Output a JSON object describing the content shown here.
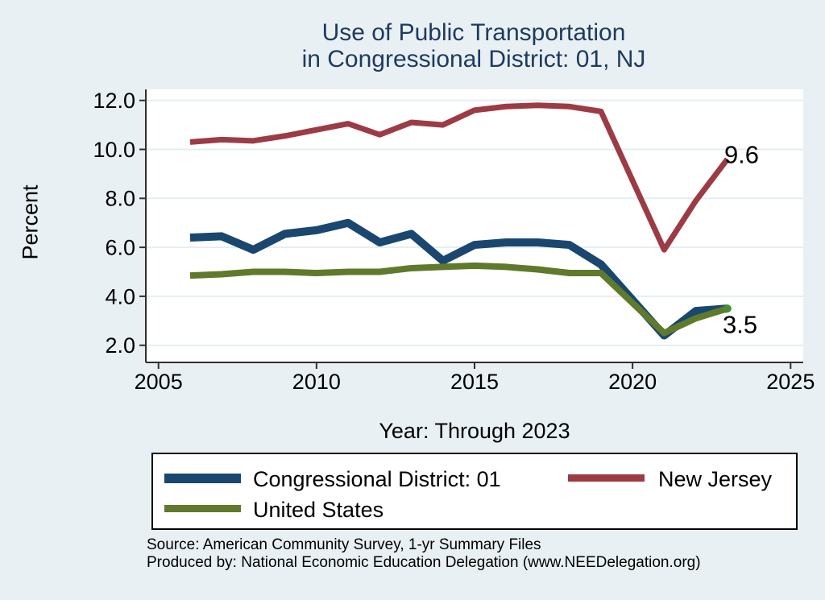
{
  "figure": {
    "title_line1": "Use of Public Transportation",
    "title_line2": "in Congressional District: 01, NJ"
  },
  "axes": {
    "y_label": "Percent",
    "x_label": "Year: Through 2023"
  },
  "legend": {
    "items": [
      {
        "label": "Congressional District: 01",
        "color": "#1a476f"
      },
      {
        "label": "New Jersey",
        "color": "#9d3b44"
      },
      {
        "label": "United States",
        "color": "#5f7a2b"
      }
    ]
  },
  "source": {
    "line1": "Source: American Community Survey, 1-yr Summary Files",
    "line2": "Produced by: National Economic Education Delegation (www.NEEDelegation.org)"
  },
  "colors": {
    "background": "#e8f0f3",
    "plot_background": "#ffffff",
    "grid": "#e4edf3",
    "axis": "#2f2f2f",
    "title": "#1e3a5e",
    "navy": "#1a476f",
    "maroon": "#9d3b44",
    "olive": "#5f7a2b",
    "end_marker_green": "#4a8c2f"
  },
  "chart_data": {
    "type": "line",
    "title": "Use of Public Transportation in Congressional District: 01, NJ",
    "xlabel": "Year: Through 2023",
    "ylabel": "Percent",
    "grid": true,
    "legend_position": "bottom",
    "xlim": [
      2004.6,
      2025.4
    ],
    "ylim": [
      1.3,
      12.45
    ],
    "x_ticks": [
      {
        "value": 2005,
        "label": "2005"
      },
      {
        "value": 2010,
        "label": "2010"
      },
      {
        "value": 2015,
        "label": "2015"
      },
      {
        "value": 2020,
        "label": "2020"
      },
      {
        "value": 2025,
        "label": "2025"
      }
    ],
    "y_ticks": [
      {
        "value": 12,
        "label": "12.0"
      },
      {
        "value": 10,
        "label": "10.0"
      },
      {
        "value": 8,
        "label": "8.0"
      },
      {
        "value": 6,
        "label": "6.0"
      },
      {
        "value": 4,
        "label": "4.0"
      },
      {
        "value": 2,
        "label": "2.0"
      }
    ],
    "x": [
      2006,
      2007,
      2008,
      2009,
      2010,
      2011,
      2012,
      2013,
      2014,
      2015,
      2016,
      2017,
      2018,
      2019,
      2020,
      2021,
      2022,
      2023
    ],
    "series": [
      {
        "name": "Congressional District: 01",
        "color": "#1a476f",
        "width": 10,
        "values": [
          6.4,
          6.45,
          5.9,
          6.55,
          6.7,
          7.0,
          6.2,
          6.55,
          5.45,
          6.1,
          6.2,
          6.2,
          6.1,
          5.3,
          null,
          2.4,
          3.4,
          3.5
        ]
      },
      {
        "name": "United States",
        "color": "#5f7a2b",
        "width": 8,
        "values": [
          4.85,
          4.9,
          5.0,
          5.0,
          4.95,
          5.0,
          5.0,
          5.15,
          5.2,
          5.25,
          5.2,
          5.1,
          4.95,
          4.95,
          null,
          2.5,
          3.1,
          3.5
        ]
      },
      {
        "name": "New Jersey",
        "color": "#9d3b44",
        "width": 7,
        "values": [
          10.3,
          10.4,
          10.35,
          10.55,
          10.8,
          11.05,
          10.6,
          11.1,
          11.0,
          11.6,
          11.75,
          11.8,
          11.75,
          11.55,
          null,
          5.9,
          7.9,
          9.6
        ]
      }
    ],
    "end_marker": {
      "series": "United States",
      "x": 2023,
      "value": 3.5,
      "color": "#4a8c2f",
      "radius": 5
    },
    "annotations": [
      {
        "text": "9.6",
        "x": 2023.45,
        "y": 9.77
      },
      {
        "text": "3.5",
        "x": 2023.4,
        "y": 2.83
      }
    ]
  }
}
